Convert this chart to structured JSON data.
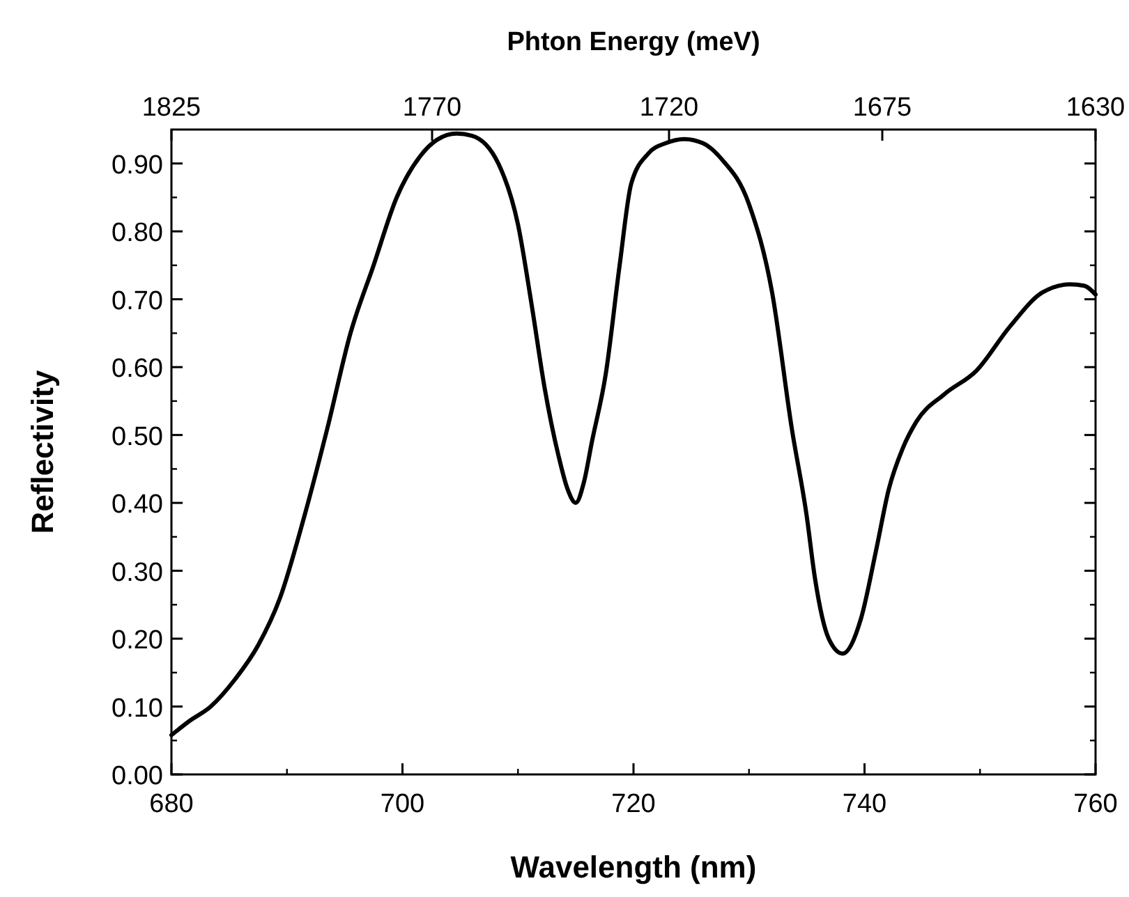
{
  "chart_data": {
    "type": "line",
    "xlabel": "Wavelength (nm)",
    "ylabel": "Reflectivity",
    "x2label": "Phton Energy (meV)",
    "xlim": [
      680,
      760
    ],
    "xticks": [
      680,
      700,
      720,
      740,
      760
    ],
    "ylim": [
      0,
      0.95
    ],
    "yticks": [
      {
        "value": 0,
        "label": "0.00"
      },
      {
        "value": 0.1,
        "label": "0.10"
      },
      {
        "value": 0.2,
        "label": "0.20"
      },
      {
        "value": 0.3,
        "label": "0.30"
      },
      {
        "value": 0.4,
        "label": "0.40"
      },
      {
        "value": 0.5,
        "label": "0.50"
      },
      {
        "value": 0.6,
        "label": "0.60"
      },
      {
        "value": 0.7,
        "label": "0.70"
      },
      {
        "value": 0.8,
        "label": "0.80"
      },
      {
        "value": 0.9,
        "label": "0.90"
      }
    ],
    "x2lim": [
      1825,
      1630
    ],
    "x2ticks": [
      1825,
      1770,
      1720,
      1675,
      1630
    ],
    "grid": false,
    "marker": "none",
    "line_style": "solid",
    "series": [
      {
        "color": "#000000",
        "x": [
          680,
          681.5,
          683.4,
          685.5,
          687.5,
          689.4,
          691.5,
          693.5,
          695.5,
          697.5,
          699.5,
          701.5,
          703,
          704.7,
          706,
          708.3,
          710,
          711.2,
          712.3,
          713.5,
          714.3,
          715,
          715.7,
          716.4,
          717.6,
          718.8,
          719.8,
          721.3,
          722.8,
          724.4,
          726,
          727.6,
          730,
          732,
          733.7,
          735,
          735.7,
          736.9,
          738.1,
          739.7,
          741,
          742.1,
          743.3,
          744.5,
          746.9,
          749.7,
          752.6,
          755.4,
          757.8,
          759,
          760
        ],
        "values": [
          0.058,
          0.078,
          0.1,
          0.14,
          0.19,
          0.26,
          0.38,
          0.51,
          0.65,
          0.75,
          0.85,
          0.91,
          0.935,
          0.944,
          0.941,
          0.9,
          0.81,
          0.69,
          0.57,
          0.47,
          0.42,
          0.4,
          0.43,
          0.49,
          0.59,
          0.75,
          0.87,
          0.915,
          0.93,
          0.936,
          0.93,
          0.907,
          0.84,
          0.71,
          0.51,
          0.38,
          0.29,
          0.2,
          0.178,
          0.23,
          0.33,
          0.42,
          0.48,
          0.52,
          0.56,
          0.595,
          0.66,
          0.71,
          0.722,
          0.72,
          0.707
        ]
      }
    ]
  }
}
